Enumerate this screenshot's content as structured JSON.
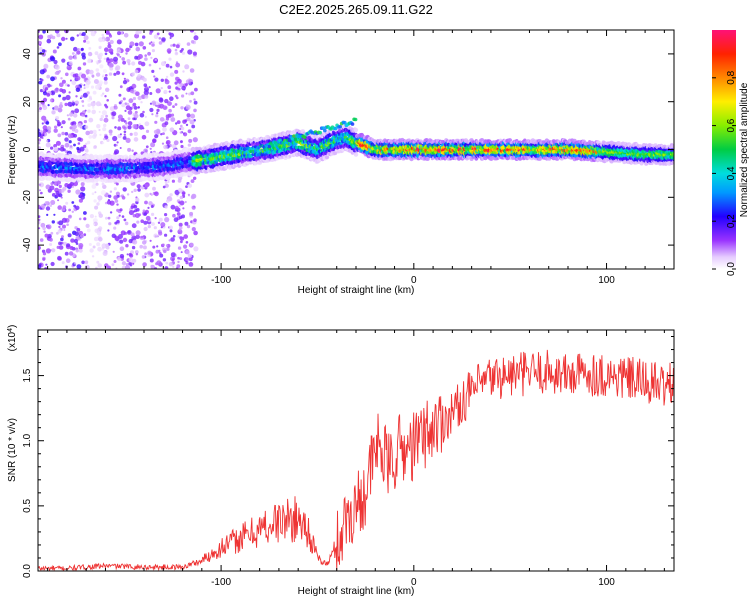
{
  "title": "C2E2.2025.265.09.11.G22",
  "chart_data": [
    {
      "type": "heatmap",
      "title": "C2E2.2025.265.09.11.G22",
      "xlabel": "Height of straight line (km)",
      "ylabel": "Frequency (Hz)",
      "xlim": [
        -195,
        135
      ],
      "ylim": [
        -50,
        50
      ],
      "xticks": [
        -100,
        0,
        100
      ],
      "yticks": [
        -40,
        -20,
        0,
        20,
        40
      ],
      "xtick_labels": [
        "-100",
        "0",
        "100"
      ],
      "ytick_labels": [
        "-40",
        "-20",
        "0",
        "20",
        "40"
      ],
      "colorbar": {
        "label": "Normalized spectral amplitude",
        "range": [
          0.0,
          1.0
        ],
        "ticks": [
          0.0,
          0.2,
          0.4,
          0.6,
          0.8
        ],
        "tick_labels": [
          "0.0",
          "0.2",
          "0.4",
          "0.6",
          "0.8"
        ]
      },
      "ridge": {
        "description_points_x": [
          -195,
          -170,
          -150,
          -130,
          -115,
          -100,
          -85,
          -70,
          -60,
          -50,
          -40,
          -35,
          -30,
          -20,
          -10,
          0,
          20,
          40,
          60,
          80,
          100,
          120,
          135
        ],
        "description_points_y": [
          -7,
          -8,
          -8,
          -7,
          -5,
          -3,
          -1,
          1,
          3,
          0,
          4,
          5,
          3,
          0,
          0,
          0,
          0,
          0,
          0,
          0,
          -1,
          -2,
          -2
        ]
      }
    },
    {
      "type": "line",
      "xlabel": "Height of straight line (km)",
      "ylabel": "SNR (10 * v/v)",
      "scale_label": "(x10",
      "scale_exp": "4",
      "scale_close": ")",
      "xlim": [
        -195,
        135
      ],
      "ylim": [
        0.0,
        1.85
      ],
      "xticks": [
        -100,
        0,
        100
      ],
      "yticks": [
        0.0,
        0.5,
        1.0,
        1.5
      ],
      "xtick_labels": [
        "-100",
        "0",
        "100"
      ],
      "ytick_labels": [
        "0.0",
        "0.5",
        "1.0",
        "1.5"
      ],
      "color": "#ee3333",
      "series": [
        {
          "name": "SNR",
          "x": [
            -195,
            -180,
            -160,
            -140,
            -120,
            -110,
            -100,
            -90,
            -80,
            -70,
            -60,
            -55,
            -50,
            -45,
            -40,
            -35,
            -30,
            -25,
            -22,
            -18,
            -15,
            -12,
            -8,
            -5,
            0,
            5,
            10,
            15,
            20,
            25,
            30,
            40,
            50,
            60,
            70,
            80,
            90,
            100,
            110,
            120,
            130,
            135
          ],
          "y": [
            0.02,
            0.02,
            0.04,
            0.03,
            0.03,
            0.08,
            0.18,
            0.25,
            0.32,
            0.38,
            0.4,
            0.32,
            0.1,
            0.05,
            0.2,
            0.4,
            0.5,
            0.62,
            0.8,
            1.0,
            0.85,
            0.8,
            0.95,
            0.92,
            0.96,
            1.05,
            1.1,
            1.15,
            1.22,
            1.3,
            1.38,
            1.48,
            1.5,
            1.52,
            1.53,
            1.5,
            1.52,
            1.5,
            1.48,
            1.45,
            1.42,
            1.45
          ]
        }
      ]
    }
  ]
}
